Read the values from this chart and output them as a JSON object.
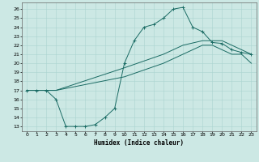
{
  "xlabel": "Humidex (Indice chaleur)",
  "bg_color": "#cce8e4",
  "grid_color": "#aad4d0",
  "line_color": "#1a6b64",
  "xlim": [
    -0.5,
    23.5
  ],
  "ylim": [
    12.5,
    26.7
  ],
  "xticks": [
    0,
    1,
    2,
    3,
    4,
    5,
    6,
    7,
    8,
    9,
    10,
    11,
    12,
    13,
    14,
    15,
    16,
    17,
    18,
    19,
    20,
    21,
    22,
    23
  ],
  "yticks": [
    13,
    14,
    15,
    16,
    17,
    18,
    19,
    20,
    21,
    22,
    23,
    24,
    25,
    26
  ],
  "line1_x": [
    0,
    1,
    2,
    3,
    4,
    5,
    6,
    7,
    8,
    9,
    10,
    11,
    12,
    13,
    14,
    15,
    16,
    17,
    18,
    19,
    20,
    21,
    22,
    23
  ],
  "line1_y": [
    17.0,
    17.0,
    17.0,
    16.0,
    13.0,
    13.0,
    13.0,
    13.2,
    14.0,
    15.0,
    20.0,
    22.5,
    24.0,
    24.3,
    25.0,
    26.0,
    26.2,
    24.0,
    23.5,
    22.3,
    22.2,
    21.5,
    21.2,
    21.0
  ],
  "line2_x": [
    0,
    3,
    10,
    14,
    15,
    16,
    18,
    19,
    20,
    21,
    22,
    23
  ],
  "line2_y": [
    17.0,
    17.0,
    19.5,
    21.0,
    21.5,
    22.0,
    22.5,
    22.5,
    22.5,
    22.0,
    21.5,
    21.0
  ],
  "line3_x": [
    0,
    3,
    10,
    14,
    15,
    16,
    17,
    18,
    19,
    20,
    21,
    22,
    23
  ],
  "line3_y": [
    17.0,
    17.0,
    18.5,
    20.0,
    20.5,
    21.0,
    21.5,
    22.0,
    22.0,
    21.5,
    21.0,
    21.0,
    20.0
  ]
}
